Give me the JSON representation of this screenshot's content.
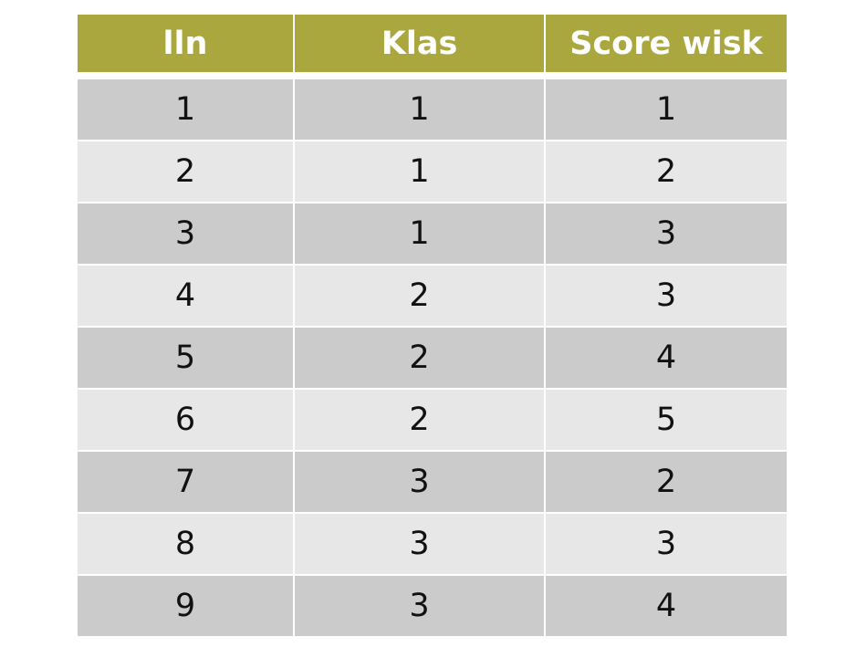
{
  "table": {
    "header_color": "#a9a73e",
    "row_colors": [
      "#cbcbcb",
      "#e7e7e7"
    ],
    "columns": [
      "lln",
      "Klas",
      "Score wisk"
    ],
    "rows": [
      [
        "1",
        "1",
        "1"
      ],
      [
        "2",
        "1",
        "2"
      ],
      [
        "3",
        "1",
        "3"
      ],
      [
        "4",
        "2",
        "3"
      ],
      [
        "5",
        "2",
        "4"
      ],
      [
        "6",
        "2",
        "5"
      ],
      [
        "7",
        "3",
        "2"
      ],
      [
        "8",
        "3",
        "3"
      ],
      [
        "9",
        "3",
        "4"
      ]
    ]
  }
}
